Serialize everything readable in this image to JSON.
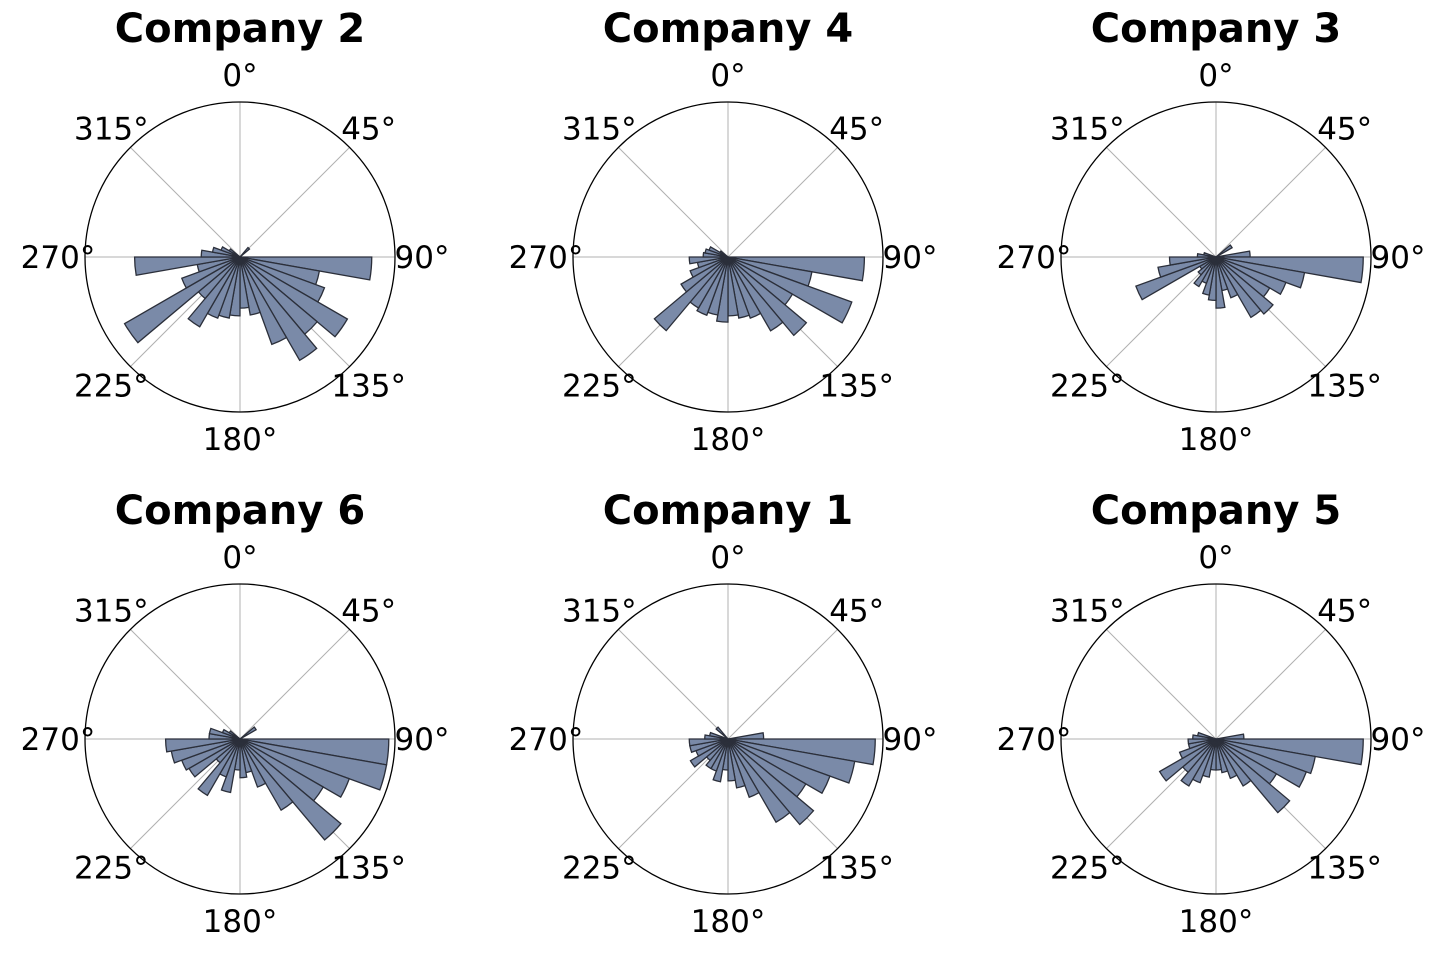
{
  "chart_data": [
    {
      "type": "rose",
      "title": "Company 2",
      "theta_labels": [
        "0°",
        "45°",
        "90°",
        "135°",
        "180°",
        "225°",
        "270°",
        "315°"
      ],
      "bin_width_deg": 10,
      "bins": [
        {
          "theta": 45,
          "r": 0.08
        },
        {
          "theta": 95,
          "r": 0.85
        },
        {
          "theta": 105,
          "r": 0.52
        },
        {
          "theta": 115,
          "r": 0.58
        },
        {
          "theta": 125,
          "r": 0.8
        },
        {
          "theta": 135,
          "r": 0.65
        },
        {
          "theta": 145,
          "r": 0.77
        },
        {
          "theta": 155,
          "r": 0.6
        },
        {
          "theta": 165,
          "r": 0.38
        },
        {
          "theta": 175,
          "r": 0.33
        },
        {
          "theta": 185,
          "r": 0.38
        },
        {
          "theta": 195,
          "r": 0.4
        },
        {
          "theta": 205,
          "r": 0.42
        },
        {
          "theta": 215,
          "r": 0.52
        },
        {
          "theta": 225,
          "r": 0.35
        },
        {
          "theta": 235,
          "r": 0.86
        },
        {
          "theta": 245,
          "r": 0.4
        },
        {
          "theta": 255,
          "r": 0.28
        },
        {
          "theta": 265,
          "r": 0.68
        },
        {
          "theta": 275,
          "r": 0.25
        },
        {
          "theta": 285,
          "r": 0.18
        },
        {
          "theta": 295,
          "r": 0.13
        },
        {
          "theta": 305,
          "r": 0.08
        }
      ]
    },
    {
      "type": "rose",
      "title": "Company 4",
      "theta_labels": [
        "0°",
        "45°",
        "90°",
        "135°",
        "180°",
        "225°",
        "270°",
        "315°"
      ],
      "bin_width_deg": 10,
      "bins": [
        {
          "theta": 95,
          "r": 0.88
        },
        {
          "theta": 105,
          "r": 0.55
        },
        {
          "theta": 115,
          "r": 0.85
        },
        {
          "theta": 125,
          "r": 0.48
        },
        {
          "theta": 135,
          "r": 0.66
        },
        {
          "theta": 145,
          "r": 0.55
        },
        {
          "theta": 155,
          "r": 0.42
        },
        {
          "theta": 165,
          "r": 0.4
        },
        {
          "theta": 175,
          "r": 0.38
        },
        {
          "theta": 185,
          "r": 0.42
        },
        {
          "theta": 195,
          "r": 0.38
        },
        {
          "theta": 205,
          "r": 0.4
        },
        {
          "theta": 215,
          "r": 0.38
        },
        {
          "theta": 225,
          "r": 0.62
        },
        {
          "theta": 235,
          "r": 0.35
        },
        {
          "theta": 245,
          "r": 0.26
        },
        {
          "theta": 255,
          "r": 0.2
        },
        {
          "theta": 265,
          "r": 0.25
        },
        {
          "theta": 275,
          "r": 0.16
        },
        {
          "theta": 285,
          "r": 0.15
        },
        {
          "theta": 295,
          "r": 0.13
        },
        {
          "theta": 305,
          "r": 0.06
        }
      ]
    },
    {
      "type": "rose",
      "title": "Company 3",
      "theta_labels": [
        "0°",
        "45°",
        "90°",
        "135°",
        "180°",
        "225°",
        "270°",
        "315°"
      ],
      "bin_width_deg": 10,
      "bins": [
        {
          "theta": 55,
          "r": 0.12
        },
        {
          "theta": 85,
          "r": 0.22
        },
        {
          "theta": 95,
          "r": 0.95
        },
        {
          "theta": 105,
          "r": 0.58
        },
        {
          "theta": 115,
          "r": 0.48
        },
        {
          "theta": 125,
          "r": 0.4
        },
        {
          "theta": 135,
          "r": 0.48
        },
        {
          "theta": 145,
          "r": 0.45
        },
        {
          "theta": 155,
          "r": 0.28
        },
        {
          "theta": 165,
          "r": 0.22
        },
        {
          "theta": 175,
          "r": 0.33
        },
        {
          "theta": 185,
          "r": 0.28
        },
        {
          "theta": 195,
          "r": 0.25
        },
        {
          "theta": 205,
          "r": 0.18
        },
        {
          "theta": 215,
          "r": 0.22
        },
        {
          "theta": 225,
          "r": 0.15
        },
        {
          "theta": 235,
          "r": 0.12
        },
        {
          "theta": 245,
          "r": 0.55
        },
        {
          "theta": 255,
          "r": 0.38
        },
        {
          "theta": 265,
          "r": 0.3
        },
        {
          "theta": 275,
          "r": 0.12
        },
        {
          "theta": 285,
          "r": 0.08
        }
      ]
    },
    {
      "type": "rose",
      "title": "Company 6",
      "theta_labels": [
        "0°",
        "45°",
        "90°",
        "135°",
        "180°",
        "225°",
        "270°",
        "315°"
      ],
      "bin_width_deg": 10,
      "bins": [
        {
          "theta": 55,
          "r": 0.12
        },
        {
          "theta": 95,
          "r": 0.96
        },
        {
          "theta": 105,
          "r": 0.96
        },
        {
          "theta": 115,
          "r": 0.75
        },
        {
          "theta": 125,
          "r": 0.62
        },
        {
          "theta": 135,
          "r": 0.85
        },
        {
          "theta": 145,
          "r": 0.53
        },
        {
          "theta": 155,
          "r": 0.33
        },
        {
          "theta": 165,
          "r": 0.22
        },
        {
          "theta": 175,
          "r": 0.25
        },
        {
          "theta": 185,
          "r": 0.2
        },
        {
          "theta": 195,
          "r": 0.35
        },
        {
          "theta": 205,
          "r": 0.26
        },
        {
          "theta": 215,
          "r": 0.42
        },
        {
          "theta": 225,
          "r": 0.2
        },
        {
          "theta": 235,
          "r": 0.38
        },
        {
          "theta": 245,
          "r": 0.4
        },
        {
          "theta": 255,
          "r": 0.45
        },
        {
          "theta": 265,
          "r": 0.48
        },
        {
          "theta": 275,
          "r": 0.2
        },
        {
          "theta": 285,
          "r": 0.2
        },
        {
          "theta": 295,
          "r": 0.12
        },
        {
          "theta": 305,
          "r": 0.08
        }
      ]
    },
    {
      "type": "rose",
      "title": "Company 1",
      "theta_labels": [
        "0°",
        "45°",
        "90°",
        "135°",
        "180°",
        "225°",
        "270°",
        "315°"
      ],
      "bin_width_deg": 10,
      "bins": [
        {
          "theta": 85,
          "r": 0.23
        },
        {
          "theta": 95,
          "r": 0.95
        },
        {
          "theta": 105,
          "r": 0.83
        },
        {
          "theta": 115,
          "r": 0.7
        },
        {
          "theta": 125,
          "r": 0.58
        },
        {
          "theta": 135,
          "r": 0.72
        },
        {
          "theta": 145,
          "r": 0.62
        },
        {
          "theta": 155,
          "r": 0.4
        },
        {
          "theta": 165,
          "r": 0.32
        },
        {
          "theta": 175,
          "r": 0.27
        },
        {
          "theta": 185,
          "r": 0.2
        },
        {
          "theta": 195,
          "r": 0.28
        },
        {
          "theta": 205,
          "r": 0.22
        },
        {
          "theta": 215,
          "r": 0.22
        },
        {
          "theta": 225,
          "r": 0.18
        },
        {
          "theta": 235,
          "r": 0.28
        },
        {
          "theta": 245,
          "r": 0.22
        },
        {
          "theta": 255,
          "r": 0.25
        },
        {
          "theta": 265,
          "r": 0.25
        },
        {
          "theta": 275,
          "r": 0.15
        },
        {
          "theta": 285,
          "r": 0.12
        },
        {
          "theta": 315,
          "r": 0.1
        }
      ]
    },
    {
      "type": "rose",
      "title": "Company 5",
      "theta_labels": [
        "0°",
        "45°",
        "90°",
        "135°",
        "180°",
        "225°",
        "270°",
        "315°"
      ],
      "bin_width_deg": 10,
      "bins": [
        {
          "theta": 85,
          "r": 0.18
        },
        {
          "theta": 95,
          "r": 0.95
        },
        {
          "theta": 105,
          "r": 0.65
        },
        {
          "theta": 115,
          "r": 0.62
        },
        {
          "theta": 125,
          "r": 0.45
        },
        {
          "theta": 135,
          "r": 0.62
        },
        {
          "theta": 145,
          "r": 0.35
        },
        {
          "theta": 155,
          "r": 0.27
        },
        {
          "theta": 165,
          "r": 0.22
        },
        {
          "theta": 175,
          "r": 0.2
        },
        {
          "theta": 185,
          "r": 0.2
        },
        {
          "theta": 195,
          "r": 0.25
        },
        {
          "theta": 205,
          "r": 0.3
        },
        {
          "theta": 215,
          "r": 0.35
        },
        {
          "theta": 225,
          "r": 0.28
        },
        {
          "theta": 235,
          "r": 0.42
        },
        {
          "theta": 245,
          "r": 0.25
        },
        {
          "theta": 255,
          "r": 0.18
        },
        {
          "theta": 265,
          "r": 0.18
        },
        {
          "theta": 275,
          "r": 0.15
        },
        {
          "theta": 285,
          "r": 0.12
        }
      ]
    }
  ]
}
